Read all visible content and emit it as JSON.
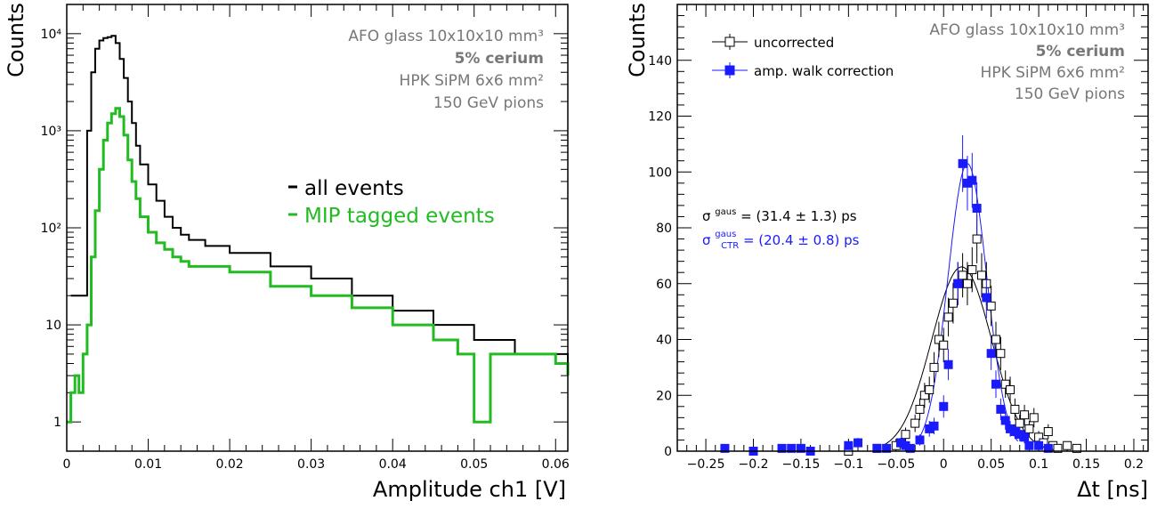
{
  "chart_data": [
    {
      "type": "line",
      "xlabel": "Amplitude ch1 [V]",
      "ylabel": "Counts",
      "xlim": [
        0,
        0.0615
      ],
      "ylim": [
        0.5,
        20000
      ],
      "yscale": "log",
      "x_ticks": [
        "0",
        "0.01",
        "0.02",
        "0.03",
        "0.04",
        "0.05",
        "0.06"
      ],
      "y_ticks": [
        "1",
        "10",
        "10²",
        "10³",
        "10⁴"
      ],
      "annotation": [
        "AFO glass 10x10x10 mm³",
        "5% cerium",
        "HPK SiPM 6x6 mm²",
        "150 GeV pions"
      ],
      "legend_placement": "center-right",
      "series": [
        {
          "name": "all events",
          "color": "#000000",
          "x": [
            0.0005,
            0.0015,
            0.0025,
            0.003,
            0.0035,
            0.004,
            0.0045,
            0.005,
            0.0055,
            0.006,
            0.0065,
            0.007,
            0.0075,
            0.008,
            0.0085,
            0.009,
            0.01,
            0.011,
            0.012,
            0.013,
            0.014,
            0.015,
            0.017,
            0.02,
            0.025,
            0.03,
            0.035,
            0.04,
            0.045,
            0.05,
            0.055,
            0.06,
            0.0615
          ],
          "values": [
            20,
            20,
            1000,
            4000,
            7000,
            8500,
            9000,
            9200,
            9500,
            8000,
            5500,
            3500,
            2000,
            1200,
            700,
            450,
            280,
            190,
            130,
            100,
            85,
            75,
            65,
            55,
            40,
            30,
            20,
            14,
            10,
            7,
            5,
            5,
            3
          ]
        },
        {
          "name": "MIP tagged events",
          "color": "#22bb22",
          "x": [
            0.0,
            0.0005,
            0.001,
            0.0015,
            0.002,
            0.0025,
            0.003,
            0.0035,
            0.004,
            0.0045,
            0.005,
            0.0055,
            0.006,
            0.0065,
            0.007,
            0.0075,
            0.008,
            0.0085,
            0.009,
            0.01,
            0.011,
            0.012,
            0.013,
            0.014,
            0.015,
            0.017,
            0.02,
            0.025,
            0.03,
            0.035,
            0.04,
            0.045,
            0.048,
            0.05,
            0.052,
            0.055,
            0.06,
            0.0615
          ],
          "values": [
            1,
            2,
            3,
            2,
            5,
            10,
            50,
            150,
            400,
            800,
            1200,
            1500,
            1700,
            1400,
            900,
            500,
            300,
            200,
            130,
            90,
            70,
            60,
            50,
            45,
            40,
            40,
            35,
            25,
            20,
            15,
            10,
            7,
            5,
            1,
            5,
            5,
            4,
            3
          ]
        }
      ]
    },
    {
      "type": "scatter",
      "xlabel": "Δt [ns]",
      "ylabel": "Counts",
      "xlim": [
        -0.28,
        0.215
      ],
      "ylim": [
        0,
        160
      ],
      "x_ticks": [
        "−0.25",
        "−0.2",
        "−0.15",
        "−0.1",
        "−0.05",
        "0",
        "0.05",
        "0.1",
        "0.15",
        "0.2"
      ],
      "y_ticks": [
        "0",
        "20",
        "40",
        "60",
        "80",
        "100",
        "120",
        "140"
      ],
      "annotation": [
        "AFO glass 10x10x10 mm³",
        "5% cerium",
        "HPK SiPM 6x6 mm²",
        "150 GeV pions"
      ],
      "legend_placement": "top-left",
      "fit_labels": [
        {
          "symbol": "σ",
          "sup": "gaus",
          "sub": "",
          "value": " = (31.4 ± 1.3) ps",
          "color": "#000000"
        },
        {
          "symbol": "σ",
          "sup": "gaus",
          "sub": "CTR",
          "value": " = (20.4 ± 0.8) ps",
          "color": "#1a1aff"
        }
      ],
      "series": [
        {
          "name": "uncorrected",
          "color": "#000000",
          "marker": "open-square",
          "x": [
            -0.1,
            -0.07,
            -0.05,
            -0.045,
            -0.04,
            -0.03,
            -0.025,
            -0.02,
            -0.015,
            -0.01,
            -0.005,
            0.0,
            0.005,
            0.01,
            0.015,
            0.02,
            0.025,
            0.03,
            0.035,
            0.04,
            0.045,
            0.05,
            0.055,
            0.06,
            0.065,
            0.07,
            0.075,
            0.08,
            0.085,
            0.09,
            0.095,
            0.1,
            0.105,
            0.11,
            0.115,
            0.12,
            0.13,
            0.14
          ],
          "values": [
            0,
            1,
            2,
            3,
            6,
            10,
            15,
            20,
            22,
            30,
            40,
            38,
            48,
            53,
            60,
            63,
            60,
            65,
            76,
            63,
            60,
            52,
            40,
            35,
            24,
            22,
            15,
            10,
            13,
            8,
            12,
            5,
            3,
            7,
            2,
            1,
            2,
            1
          ],
          "fit": {
            "mean": 0.019,
            "sigma": 0.0314,
            "amplitude": 66
          }
        },
        {
          "name": "amp. walk correction",
          "color": "#1a1aff",
          "marker": "filled-square",
          "x": [
            -0.23,
            -0.2,
            -0.17,
            -0.16,
            -0.15,
            -0.14,
            -0.1,
            -0.09,
            -0.07,
            -0.06,
            -0.045,
            -0.04,
            -0.035,
            -0.025,
            -0.015,
            -0.01,
            0.0,
            0.005,
            0.015,
            0.02,
            0.025,
            0.03,
            0.035,
            0.045,
            0.05,
            0.055,
            0.06,
            0.065,
            0.07,
            0.075,
            0.08,
            0.085,
            0.09,
            0.1,
            0.11
          ],
          "values": [
            1,
            0,
            1,
            1,
            1,
            0,
            2,
            3,
            1,
            1,
            3,
            2,
            1,
            4,
            8,
            9,
            16,
            31,
            60,
            103,
            96,
            97,
            87,
            55,
            35,
            24,
            15,
            11,
            8,
            7,
            6,
            5,
            2,
            2,
            1
          ],
          "fit": {
            "mean": 0.025,
            "sigma": 0.0204,
            "amplitude": 103
          }
        }
      ]
    }
  ]
}
